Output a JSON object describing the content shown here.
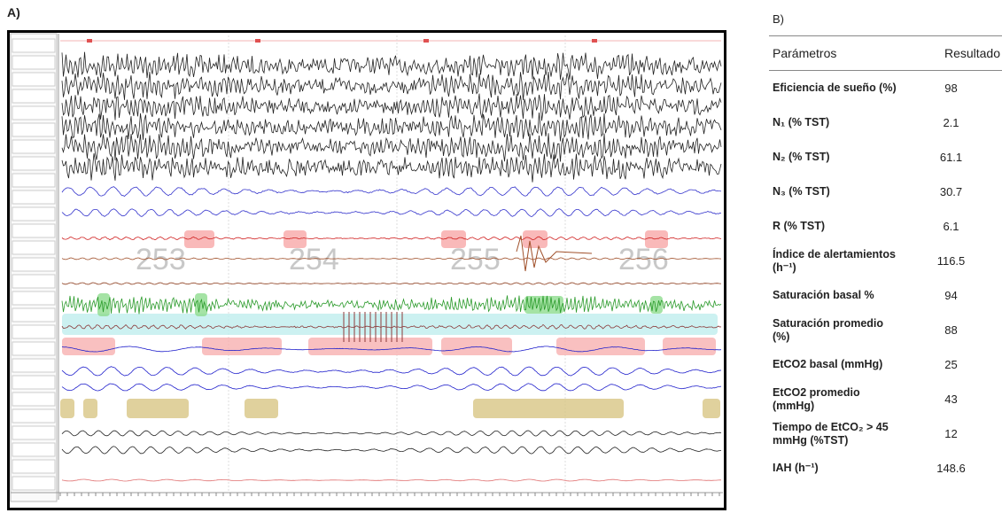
{
  "panel_a": {
    "label": "A)",
    "epochs": [
      "253",
      "254",
      "255",
      "256"
    ]
  },
  "panel_b": {
    "label": "B)",
    "table": {
      "header": [
        "Parámetros",
        "Resultado"
      ],
      "rows": [
        [
          "Eficiencia de sueño (%)",
          98
        ],
        [
          "N₁ (% TST)",
          2.1
        ],
        [
          "N₂ (% TST)",
          61.1
        ],
        [
          "N₃ (% TST)",
          30.7
        ],
        [
          "R (% TST)",
          6.1
        ],
        [
          "Índice de alertamientos (h⁻¹)",
          116.5
        ],
        [
          "Saturación basal %",
          94
        ],
        [
          "Saturación promedio (%)",
          88
        ],
        [
          "EtCO2 basal (mmHg)",
          25
        ],
        [
          "EtCO2 promedio (mmHg)",
          43
        ],
        [
          "Tiempo de EtCO₂ > 45 mmHg (%TST)",
          12
        ],
        [
          "IAH (h⁻¹)",
          148.6
        ]
      ]
    }
  }
}
